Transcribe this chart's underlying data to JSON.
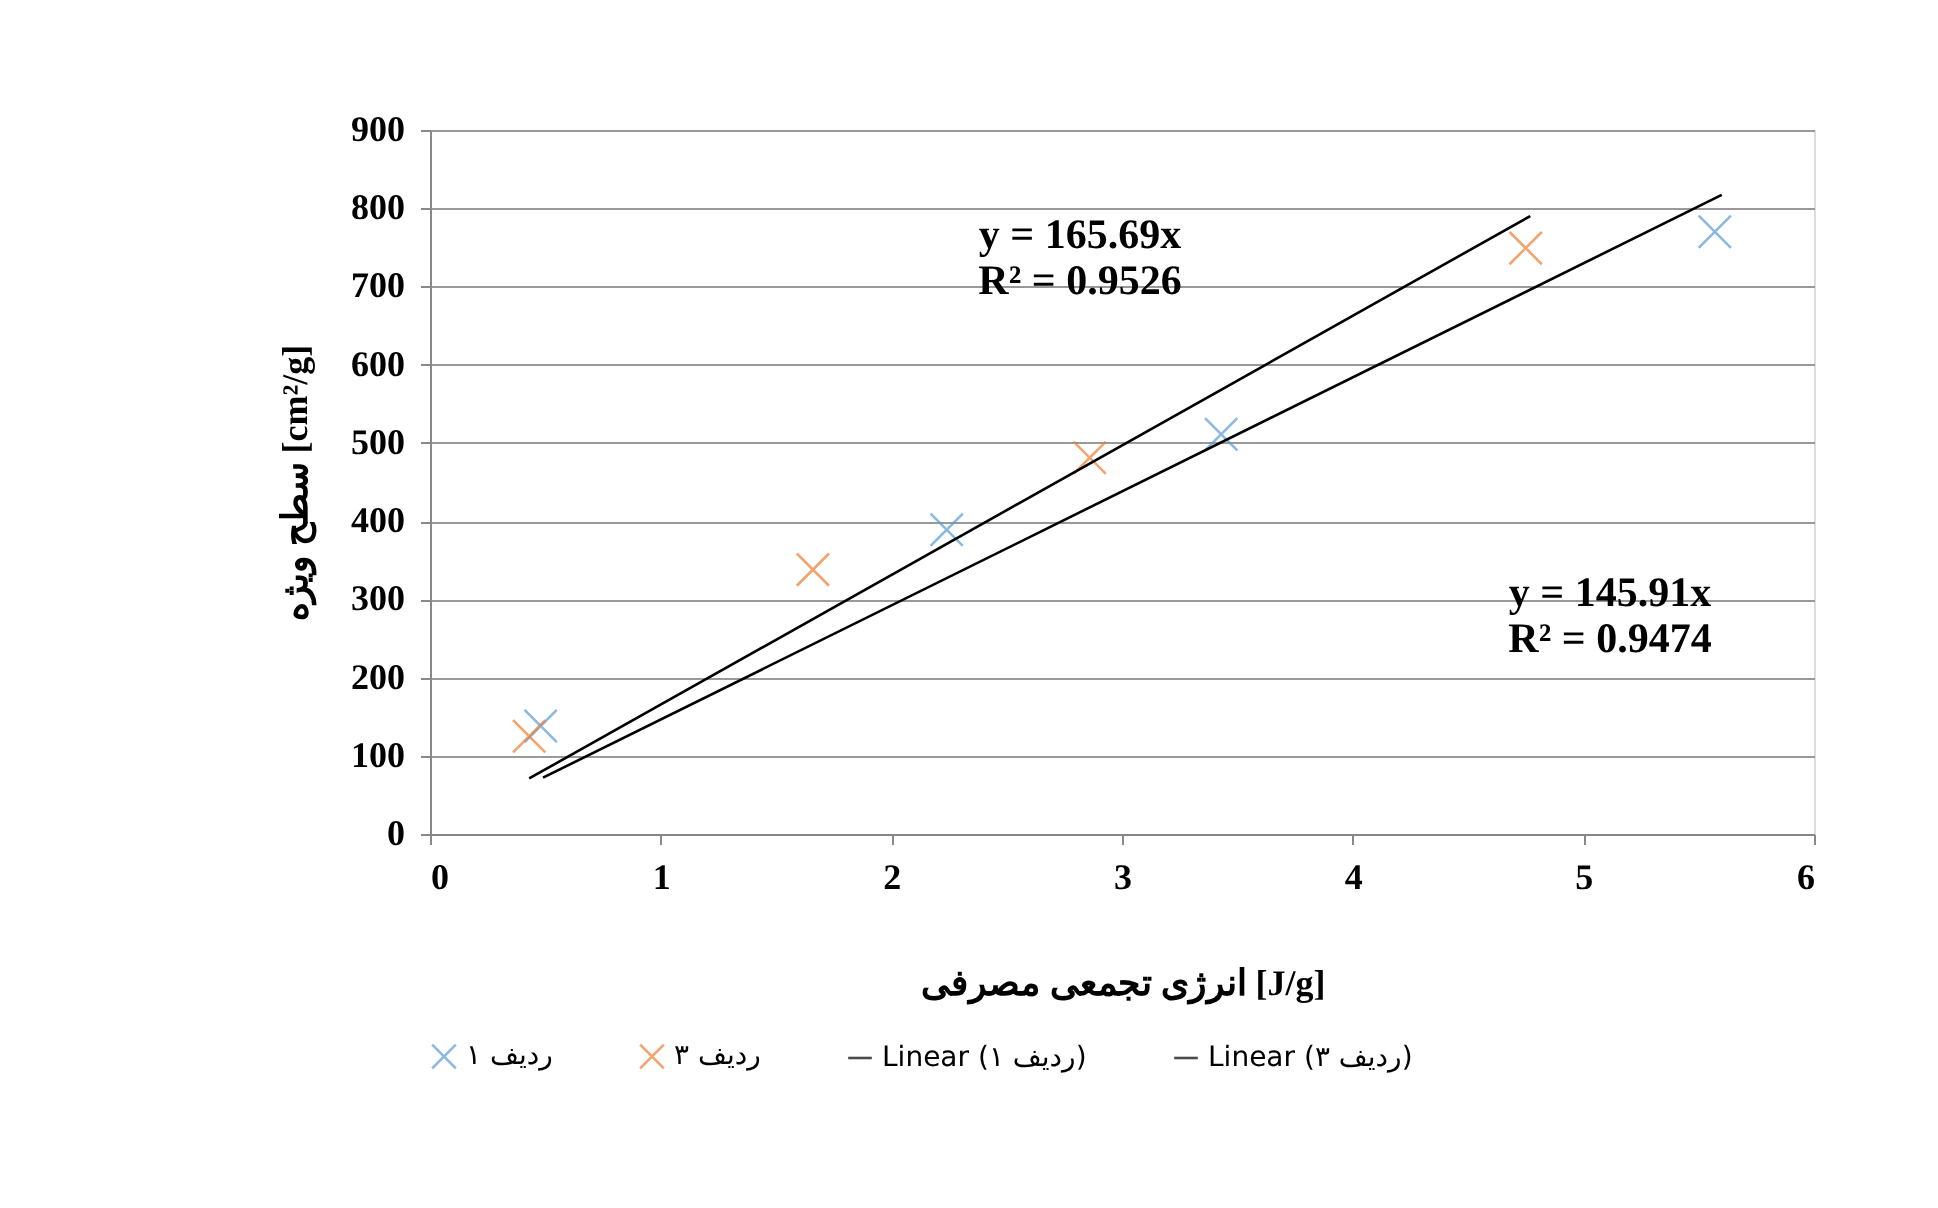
{
  "chart_data": {
    "type": "scatter",
    "xlabel": "انرژی تجمعی مصرفی [J/g]",
    "ylabel": "سطح ویژه [cm²/g]",
    "series": [
      {
        "name": "ردیف ۱",
        "marker": "cross",
        "color": "#5b9bd5",
        "x": [
          0.48,
          2.24,
          3.43,
          5.57
        ],
        "values": [
          138,
          389,
          511,
          770
        ]
      },
      {
        "name": "ردیف ۳",
        "marker": "cross",
        "color": "#ed7d31",
        "x": [
          0.43,
          1.66,
          2.86,
          4.75
        ],
        "values": [
          125,
          338,
          481,
          749
        ]
      },
      {
        "name": "Linear (ردیف ۱)",
        "type": "line",
        "marker": "none",
        "color": "#000000",
        "x": [
          0.49,
          5.6
        ],
        "values": [
          72,
          817
        ]
      },
      {
        "name": "Linear (ردیف ۳)",
        "type": "line",
        "marker": "none",
        "color": "#000000",
        "x": [
          0.43,
          4.77
        ],
        "values": [
          71,
          790
        ]
      }
    ],
    "annotations": [
      "y = 165.69x\nR² = 0.9526",
      "y = 145.91x\nR² = 0.9474"
    ],
    "xlim": [
      0,
      6
    ],
    "xticks": [
      0,
      1,
      2,
      3,
      4,
      5,
      6
    ],
    "ylim": [
      0,
      900
    ],
    "yticks": [
      0,
      100,
      200,
      300,
      400,
      500,
      600,
      700,
      800,
      900
    ],
    "grid": "y",
    "legend": "bottom"
  }
}
